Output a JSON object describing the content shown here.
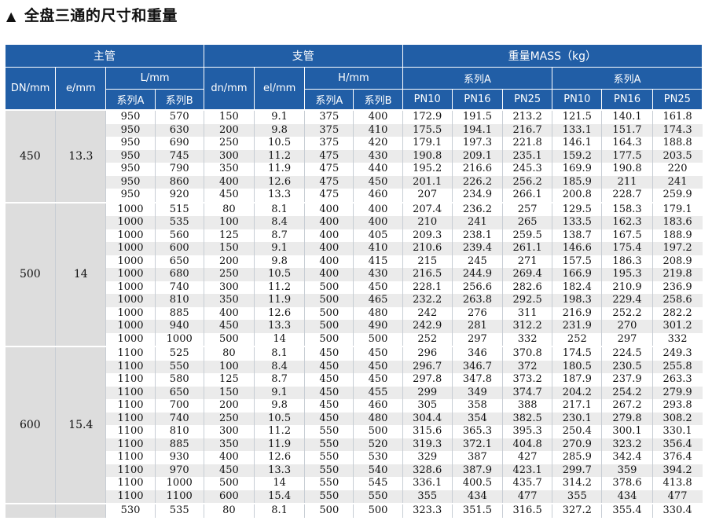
{
  "page": {
    "title": "全盘三通的尺寸和重量"
  },
  "table": {
    "main_pipe": "主管",
    "branch_pipe": "支管",
    "weight_header": "重量MASS（kg）",
    "dn": "DN/mm",
    "e": "e/mm",
    "L": "L/mm",
    "dn_branch": "dn/mm",
    "el": "el/mm",
    "H": "H/mm",
    "seriesA_group_1": "系列A",
    "seriesA_group_2": "系列A",
    "sub_seriesA_L": "系列A",
    "sub_seriesB_L": "系列B",
    "sub_seriesA_H": "系列A",
    "sub_seriesB_H": "系列B",
    "pn_1": [
      "PN10",
      "PN16",
      "PN25"
    ],
    "pn_2": [
      "PN10",
      "PN16",
      "PN25"
    ],
    "groups": [
      {
        "DN": "450",
        "e": "13.3",
        "rows": [
          [
            "950",
            "570",
            "150",
            "9.1",
            "375",
            "400",
            "172.9",
            "191.5",
            "213.2",
            "121.5",
            "140.1",
            "161.8"
          ],
          [
            "950",
            "630",
            "200",
            "9.8",
            "375",
            "410",
            "175.5",
            "194.1",
            "216.7",
            "133.1",
            "151.7",
            "174.3"
          ],
          [
            "950",
            "690",
            "250",
            "10.5",
            "375",
            "420",
            "179.1",
            "197.3",
            "221.8",
            "146.1",
            "164.3",
            "188.8"
          ],
          [
            "950",
            "745",
            "300",
            "11.2",
            "475",
            "430",
            "190.8",
            "209.1",
            "235.1",
            "159.2",
            "177.5",
            "203.5"
          ],
          [
            "950",
            "790",
            "350",
            "11.9",
            "475",
            "440",
            "195.2",
            "216.6",
            "245.3",
            "169.9",
            "190.8",
            "220"
          ],
          [
            "950",
            "860",
            "400",
            "12.6",
            "475",
            "450",
            "201.1",
            "226.2",
            "256.2",
            "185.9",
            "211",
            "241"
          ],
          [
            "950",
            "920",
            "450",
            "13.3",
            "475",
            "460",
            "207",
            "234.9",
            "266.1",
            "200.8",
            "228.7",
            "259.9"
          ]
        ]
      },
      {
        "DN": "500",
        "e": "14",
        "rows": [
          [
            "1000",
            "515",
            "80",
            "8.1",
            "400",
            "400",
            "207.4",
            "236.2",
            "257",
            "129.5",
            "158.3",
            "179.1"
          ],
          [
            "1000",
            "535",
            "100",
            "8.4",
            "400",
            "400",
            "210",
            "241",
            "265",
            "133.5",
            "162.3",
            "183.6"
          ],
          [
            "1000",
            "560",
            "125",
            "8.7",
            "400",
            "405",
            "209.3",
            "238.1",
            "259.5",
            "138.7",
            "167.5",
            "188.9"
          ],
          [
            "1000",
            "600",
            "150",
            "9.1",
            "400",
            "410",
            "210.6",
            "239.4",
            "261.1",
            "146.6",
            "175.4",
            "197.2"
          ],
          [
            "1000",
            "650",
            "200",
            "9.8",
            "400",
            "415",
            "215",
            "245",
            "271",
            "157.5",
            "186.3",
            "208.9"
          ],
          [
            "1000",
            "680",
            "250",
            "10.5",
            "400",
            "430",
            "216.5",
            "244.9",
            "269.4",
            "166.9",
            "195.3",
            "219.8"
          ],
          [
            "1000",
            "740",
            "300",
            "11.2",
            "500",
            "450",
            "228.1",
            "256.6",
            "282.6",
            "182.4",
            "210.9",
            "236.9"
          ],
          [
            "1000",
            "810",
            "350",
            "11.9",
            "500",
            "465",
            "232.2",
            "263.8",
            "292.5",
            "198.3",
            "229.4",
            "258.6"
          ],
          [
            "1000",
            "885",
            "400",
            "12.6",
            "500",
            "480",
            "242",
            "276",
            "311",
            "216.9",
            "252.2",
            "282.2"
          ],
          [
            "1000",
            "940",
            "450",
            "13.3",
            "500",
            "490",
            "242.9",
            "281",
            "312.2",
            "231.9",
            "270",
            "301.2"
          ],
          [
            "1000",
            "1000",
            "500",
            "14",
            "500",
            "500",
            "252",
            "297",
            "332",
            "252",
            "297",
            "332"
          ]
        ]
      },
      {
        "DN": "600",
        "e": "15.4",
        "rows": [
          [
            "1100",
            "525",
            "80",
            "8.1",
            "450",
            "450",
            "296",
            "346",
            "370.8",
            "174.5",
            "224.5",
            "249.3"
          ],
          [
            "1100",
            "550",
            "100",
            "8.4",
            "450",
            "450",
            "296.7",
            "346.7",
            "372",
            "180.5",
            "230.5",
            "255.8"
          ],
          [
            "1100",
            "580",
            "125",
            "8.7",
            "450",
            "450",
            "297.8",
            "347.8",
            "373.2",
            "187.9",
            "237.9",
            "263.3"
          ],
          [
            "1100",
            "650",
            "150",
            "9.1",
            "450",
            "455",
            "299",
            "349",
            "374.7",
            "204.2",
            "254.2",
            "279.9"
          ],
          [
            "1100",
            "700",
            "200",
            "9.8",
            "450",
            "460",
            "305",
            "358",
            "388",
            "217.1",
            "267.2",
            "293.8"
          ],
          [
            "1100",
            "740",
            "250",
            "10.5",
            "450",
            "480",
            "304.4",
            "354",
            "382.5",
            "230.1",
            "279.8",
            "308.2"
          ],
          [
            "1100",
            "810",
            "300",
            "11.2",
            "550",
            "500",
            "315.6",
            "365.3",
            "395.3",
            "250.4",
            "300.1",
            "330.1"
          ],
          [
            "1100",
            "885",
            "350",
            "11.9",
            "550",
            "520",
            "319.3",
            "372.1",
            "404.8",
            "270.9",
            "323.2",
            "356.4"
          ],
          [
            "1100",
            "930",
            "400",
            "12.6",
            "550",
            "530",
            "329",
            "387",
            "427",
            "285.9",
            "342.4",
            "376.4"
          ],
          [
            "1100",
            "970",
            "450",
            "13.3",
            "550",
            "540",
            "328.6",
            "387.9",
            "423.1",
            "299.7",
            "359",
            "394.2"
          ],
          [
            "1100",
            "1000",
            "500",
            "14",
            "550",
            "545",
            "336.1",
            "400.5",
            "435.7",
            "314.2",
            "378.6",
            "413.8"
          ],
          [
            "1100",
            "1100",
            "600",
            "15.4",
            "550",
            "550",
            "355",
            "434",
            "477",
            "355",
            "434",
            "477"
          ]
        ]
      },
      {
        "DN": "",
        "e": "",
        "rows": [
          [
            "530",
            "535",
            "80",
            "8.1",
            "500",
            "500",
            "323.3",
            "351.5",
            "316.5",
            "327.2",
            "355.4",
            "330.4"
          ]
        ]
      }
    ]
  }
}
